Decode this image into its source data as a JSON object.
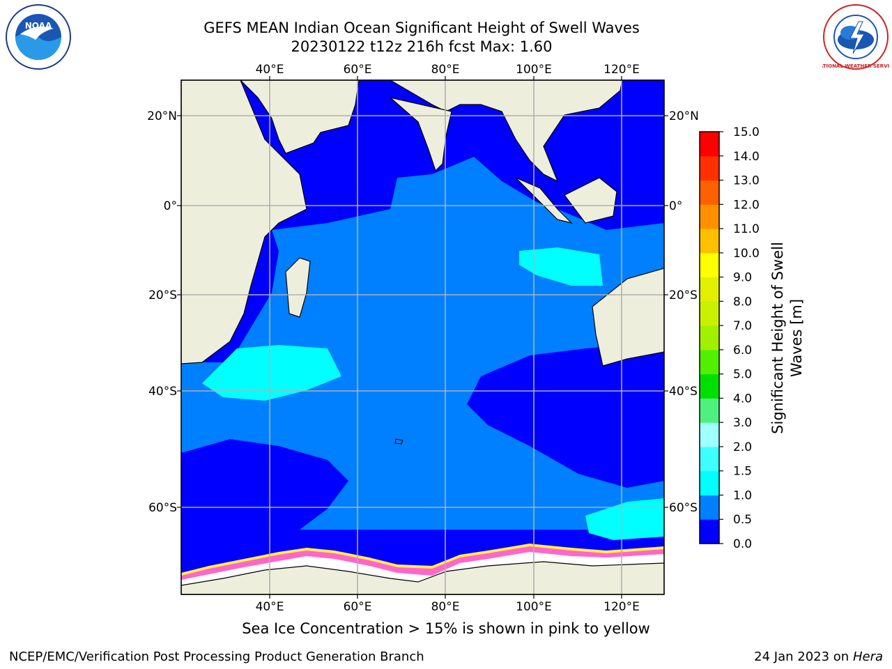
{
  "title_line1": "GEFS MEAN Indian Ocean Significant Height of Swell Waves",
  "title_line2": "20230122 t12z 216h fcst   Max: 1.60",
  "caption": "Sea Ice Concentration > 15% is shown in pink to yellow",
  "footer_left": "NCEP/EMC/Verification Post Processing Product Generation Branch",
  "footer_date": "24 Jan 2023 on ",
  "footer_machine": "Hera",
  "lon_labels": [
    "40°E",
    "60°E",
    "80°E",
    "100°E",
    "120°E"
  ],
  "lat_labels": [
    "20°N",
    "0°",
    "20°S",
    "40°S",
    "60°S"
  ],
  "colorbar": {
    "label_line1": "Significant Height of Swell",
    "label_line2": "Waves [m]",
    "ticks": [
      "0.0",
      "0.5",
      "1.0",
      "1.5",
      "2.0",
      "3.0",
      "4.0",
      "5.0",
      "6.0",
      "7.0",
      "8.0",
      "9.0",
      "10.0",
      "11.0",
      "12.0",
      "13.0",
      "14.0",
      "15.0"
    ],
    "colors": [
      "#0000ff",
      "#0080ff",
      "#00ffff",
      "#40ffff",
      "#a0ffff",
      "#50f080",
      "#00e000",
      "#50f000",
      "#a0f000",
      "#c8f000",
      "#e0f000",
      "#ffff00",
      "#ffc000",
      "#ff9000",
      "#ff6000",
      "#ff3000",
      "#ff0000"
    ]
  },
  "logos": {
    "left": "NOAA",
    "right": "NATIONAL WEATHER SERVICE"
  },
  "colors": {
    "land": "#eeeedd",
    "deep_ocean": "#0000ff",
    "ocean_mid": "#0080ff",
    "ocean_light": "#00ffff",
    "grid": "#b0b0b0",
    "ice": "#ff66cc",
    "ice_edge": "#ffee44"
  }
}
